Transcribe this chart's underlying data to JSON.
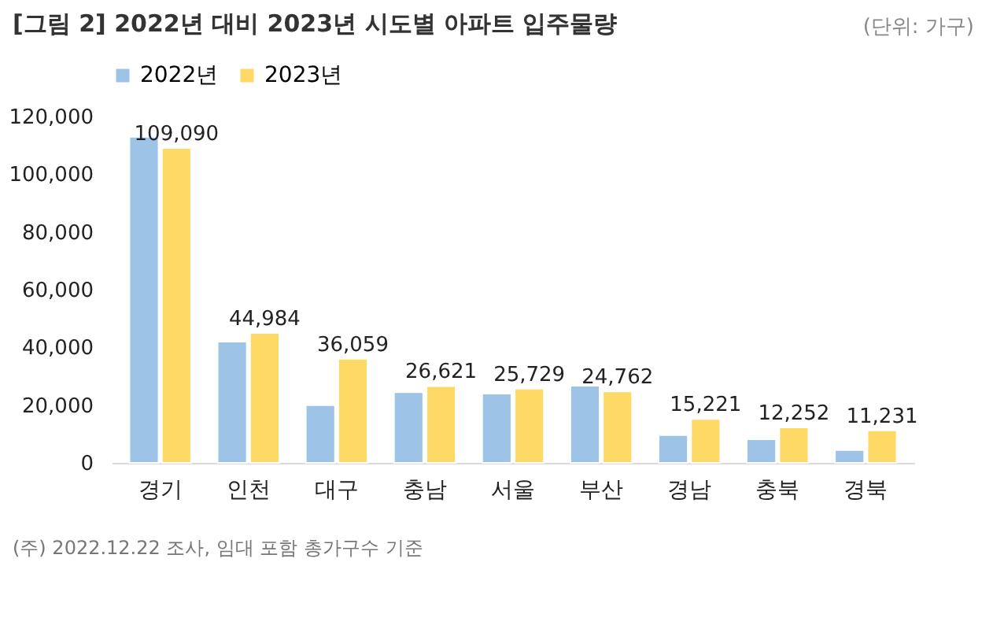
{
  "chart_data": {
    "type": "bar",
    "title": "[그림 2] 2022년 대비 2023년 시도별 아파트 입주물량",
    "subtitle": "(단위: 가구)",
    "categories": [
      "경기",
      "인천",
      "대구",
      "충남",
      "서울",
      "부산",
      "경남",
      "충북",
      "경북"
    ],
    "series": [
      {
        "name": "2022년",
        "color": "#9dc3e6",
        "values": [
          113000,
          42000,
          20000,
          24500,
          24000,
          26700,
          9600,
          8200,
          4400
        ]
      },
      {
        "name": "2023년",
        "color": "#ffd966",
        "values": [
          109090,
          44984,
          36059,
          26621,
          25729,
          24762,
          15221,
          12252,
          11231
        ],
        "value_labels": [
          "109,090",
          "44,984",
          "36,059",
          "26,621",
          "25,729",
          "24,762",
          "15,221",
          "12,252",
          "11,231"
        ]
      }
    ],
    "ylim": [
      0,
      120000
    ],
    "yticks": [
      0,
      {
        "value": 20000,
        "label": "20,000"
      },
      {
        "value": 40000,
        "label": "40,000"
      },
      {
        "value": 60000,
        "label": "60,000"
      },
      {
        "value": 80000,
        "label": "80,000"
      },
      {
        "value": 100000,
        "label": "100,000"
      },
      {
        "value": 120000,
        "label": "120,000"
      }
    ],
    "legend": "top",
    "grid": false,
    "annotations": [
      "(주) 2022.12.22 조사, 임대 포함 총가구수 기준"
    ]
  }
}
